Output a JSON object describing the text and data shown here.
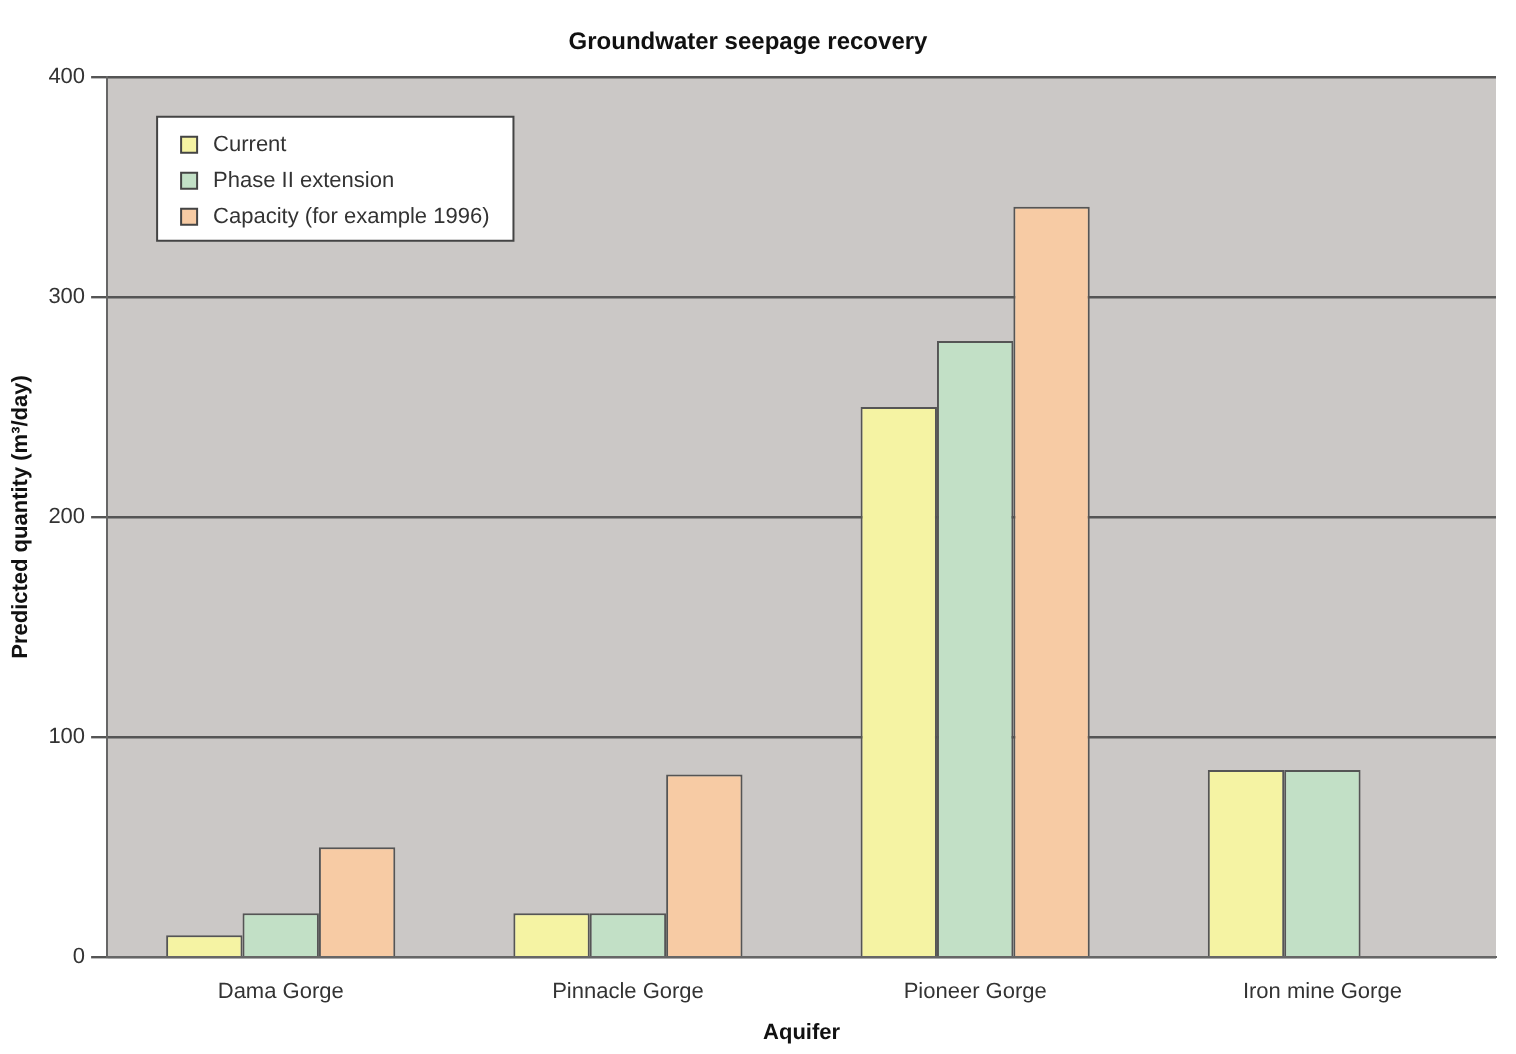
{
  "chart_data": {
    "type": "bar",
    "title": "Groundwater seepage recovery",
    "xlabel": "Aquifer",
    "ylabel": "Predicted quantity (m³/day)",
    "categories": [
      "Dama Gorge",
      "Pinnacle Gorge",
      "Pioneer Gorge",
      "Iron mine Gorge"
    ],
    "series": [
      {
        "name": "Current",
        "color": "#f5f3a3",
        "values": [
          10,
          20,
          250,
          85
        ]
      },
      {
        "name": "Phase II extension",
        "color": "#c2e0c6",
        "values": [
          20,
          20,
          280,
          85
        ]
      },
      {
        "name": "Capacity (for example 1996)",
        "color": "#f7cba4",
        "values": [
          50,
          83,
          341,
          null
        ]
      }
    ],
    "ylim": [
      0,
      400
    ],
    "yticks": [
      0,
      100,
      200,
      300,
      400
    ],
    "grid": "y",
    "legend": "top left"
  }
}
